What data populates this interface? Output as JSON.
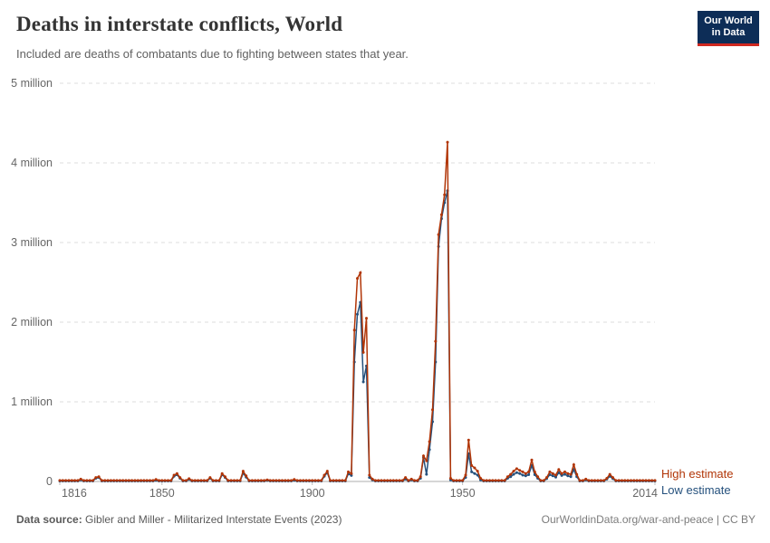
{
  "header": {
    "title": "Deaths in interstate conflicts, World",
    "subtitle": "Included are deaths of combatants due to fighting between states that year."
  },
  "logo": {
    "line1": "Our World",
    "line2": "in Data",
    "bg_color": "#0d2d57",
    "accent_color": "#cf2820"
  },
  "legend": [
    {
      "label": "High estimate",
      "color": "#b13507"
    },
    {
      "label": "Low estimate",
      "color": "#25517d"
    }
  ],
  "footer": {
    "source_label": "Data source:",
    "source_value": " Gibler and Miller - Militarized Interstate Events (2023)",
    "credit": "OurWorldinData.org/war-and-peace | CC BY"
  },
  "chart_data": {
    "type": "line",
    "title": "Deaths in interstate conflicts, World",
    "subtitle": "Included are deaths of combatants due to fighting between states that year.",
    "xlabel": "",
    "ylabel": "",
    "x_range": [
      1816,
      2014
    ],
    "ylim": [
      0,
      5000000
    ],
    "grid": "horizontal-dashed",
    "legend_position": "right-of-line-ends",
    "yticks": [
      {
        "value": 0,
        "label": "0"
      },
      {
        "value": 1000000,
        "label": "1 million"
      },
      {
        "value": 2000000,
        "label": "2 million"
      },
      {
        "value": 3000000,
        "label": "3 million"
      },
      {
        "value": 4000000,
        "label": "4 million"
      },
      {
        "value": 5000000,
        "label": "5 million"
      }
    ],
    "xticks": [
      1816,
      1850,
      1900,
      1950,
      2014
    ],
    "series": [
      {
        "name": "High estimate",
        "color": "#b13507",
        "baseline_value": 12000,
        "points": {
          "1823": 30000,
          "1828": 50000,
          "1829": 60000,
          "1848": 25000,
          "1854": 80000,
          "1855": 100000,
          "1856": 50000,
          "1859": 35000,
          "1866": 50000,
          "1870": 100000,
          "1871": 60000,
          "1877": 130000,
          "1878": 70000,
          "1885": 20000,
          "1894": 25000,
          "1904": 80000,
          "1905": 130000,
          "1912": 120000,
          "1913": 100000,
          "1914": 1900000,
          "1915": 2550000,
          "1916": 2620000,
          "1917": 1620000,
          "1918": 2050000,
          "1919": 80000,
          "1920": 30000,
          "1931": 50000,
          "1933": 30000,
          "1936": 60000,
          "1937": 320000,
          "1938": 260000,
          "1939": 500000,
          "1940": 900000,
          "1941": 1760000,
          "1942": 3100000,
          "1943": 3350000,
          "1944": 3600000,
          "1945": 4260000,
          "1946": 40000,
          "1951": 80000,
          "1952": 520000,
          "1953": 200000,
          "1954": 170000,
          "1955": 130000,
          "1956": 40000,
          "1965": 60000,
          "1966": 90000,
          "1967": 130000,
          "1968": 160000,
          "1969": 140000,
          "1970": 120000,
          "1971": 100000,
          "1972": 120000,
          "1973": 270000,
          "1974": 120000,
          "1975": 60000,
          "1978": 50000,
          "1979": 120000,
          "1980": 100000,
          "1981": 80000,
          "1982": 150000,
          "1983": 100000,
          "1984": 120000,
          "1985": 100000,
          "1986": 90000,
          "1987": 210000,
          "1988": 90000,
          "1991": 30000,
          "1998": 40000,
          "1999": 90000,
          "2000": 50000
        }
      },
      {
        "name": "Low estimate",
        "color": "#25517d",
        "baseline_value": 6000,
        "points": {
          "1823": 20000,
          "1828": 40000,
          "1829": 50000,
          "1848": 15000,
          "1854": 65000,
          "1855": 85000,
          "1856": 40000,
          "1859": 25000,
          "1866": 40000,
          "1870": 85000,
          "1871": 50000,
          "1877": 105000,
          "1878": 55000,
          "1885": 12000,
          "1894": 15000,
          "1904": 65000,
          "1905": 110000,
          "1912": 95000,
          "1913": 75000,
          "1914": 1500000,
          "1915": 2100000,
          "1916": 2250000,
          "1917": 1250000,
          "1918": 1450000,
          "1919": 50000,
          "1920": 20000,
          "1931": 30000,
          "1933": 20000,
          "1936": 40000,
          "1937": 300000,
          "1938": 90000,
          "1939": 400000,
          "1940": 750000,
          "1941": 1500000,
          "1942": 2950000,
          "1943": 3300000,
          "1944": 3500000,
          "1945": 3650000,
          "1946": 20000,
          "1951": 50000,
          "1952": 350000,
          "1953": 120000,
          "1954": 100000,
          "1955": 80000,
          "1956": 20000,
          "1965": 40000,
          "1966": 60000,
          "1967": 90000,
          "1968": 110000,
          "1969": 100000,
          "1970": 80000,
          "1971": 70000,
          "1972": 85000,
          "1973": 200000,
          "1974": 85000,
          "1975": 40000,
          "1978": 35000,
          "1979": 85000,
          "1980": 70000,
          "1981": 55000,
          "1982": 110000,
          "1983": 75000,
          "1984": 90000,
          "1985": 70000,
          "1986": 60000,
          "1987": 150000,
          "1988": 60000,
          "1991": 20000,
          "1998": 30000,
          "1999": 65000,
          "2000": 35000
        }
      }
    ]
  }
}
